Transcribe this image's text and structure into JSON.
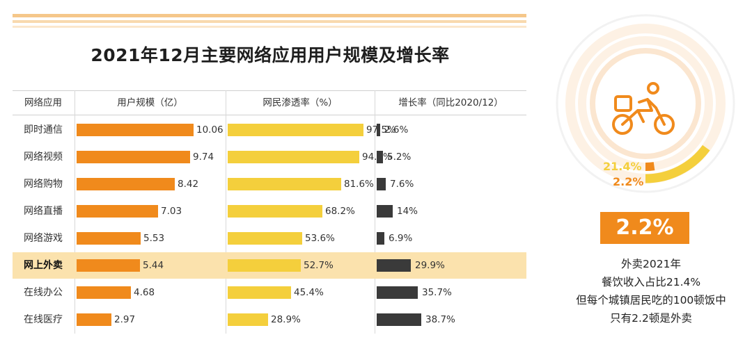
{
  "title": "2021年12月主要网络应用用户规模及增长率",
  "colors": {
    "users": "#f08a1c",
    "penetration": "#f4cf3c",
    "growth": "#3a3a3a",
    "highlight": "#fbe2ad"
  },
  "chart_data": {
    "type": "table",
    "title": "2021年12月主要网络应用用户规模及增长率",
    "headers": [
      "网络应用",
      "用户规模（亿）",
      "网民渗透率（%）",
      "增长率（同比2020/12）"
    ],
    "highlighted_row": "网上外卖",
    "rows": [
      {
        "name": "即时通信",
        "users": 10.06,
        "users_label": "10.06",
        "penetration": 97.5,
        "penetration_label": "97.5%",
        "growth": 2.6,
        "growth_label": "2.6%"
      },
      {
        "name": "网络视频",
        "users": 9.74,
        "users_label": "9.74",
        "penetration": 94.5,
        "penetration_label": "94.5%",
        "growth": 5.2,
        "growth_label": "5.2%"
      },
      {
        "name": "网络购物",
        "users": 8.42,
        "users_label": "8.42",
        "penetration": 81.6,
        "penetration_label": "81.6%",
        "growth": 7.6,
        "growth_label": "7.6%"
      },
      {
        "name": "网络直播",
        "users": 7.03,
        "users_label": "7.03",
        "penetration": 68.2,
        "penetration_label": "68.2%",
        "growth": 14,
        "growth_label": "14%"
      },
      {
        "name": "网络游戏",
        "users": 5.53,
        "users_label": "5.53",
        "penetration": 53.6,
        "penetration_label": "53.6%",
        "growth": 6.9,
        "growth_label": "6.9%"
      },
      {
        "name": "网上外卖",
        "users": 5.44,
        "users_label": "5.44",
        "penetration": 52.7,
        "penetration_label": "52.7%",
        "growth": 29.9,
        "growth_label": "29.9%"
      },
      {
        "name": "在线办公",
        "users": 4.68,
        "users_label": "4.68",
        "penetration": 45.4,
        "penetration_label": "45.4%",
        "growth": 35.7,
        "growth_label": "35.7%"
      },
      {
        "name": "在线医疗",
        "users": 2.97,
        "users_label": "2.97",
        "penetration": 28.9,
        "penetration_label": "28.9%",
        "growth": 38.7,
        "growth_label": "38.7%"
      }
    ]
  },
  "donut": {
    "icon": "delivery-rider-icon",
    "outer_label": "21.4%",
    "outer_value": 21.4,
    "inner_label": "2.2%",
    "inner_value": 2.2
  },
  "badge": "2.2%",
  "description": [
    "外卖2021年",
    "餐饮收入占比21.4%",
    "但每个城镇居民吃的100顿饭中",
    "只有2.2顿是外卖"
  ]
}
